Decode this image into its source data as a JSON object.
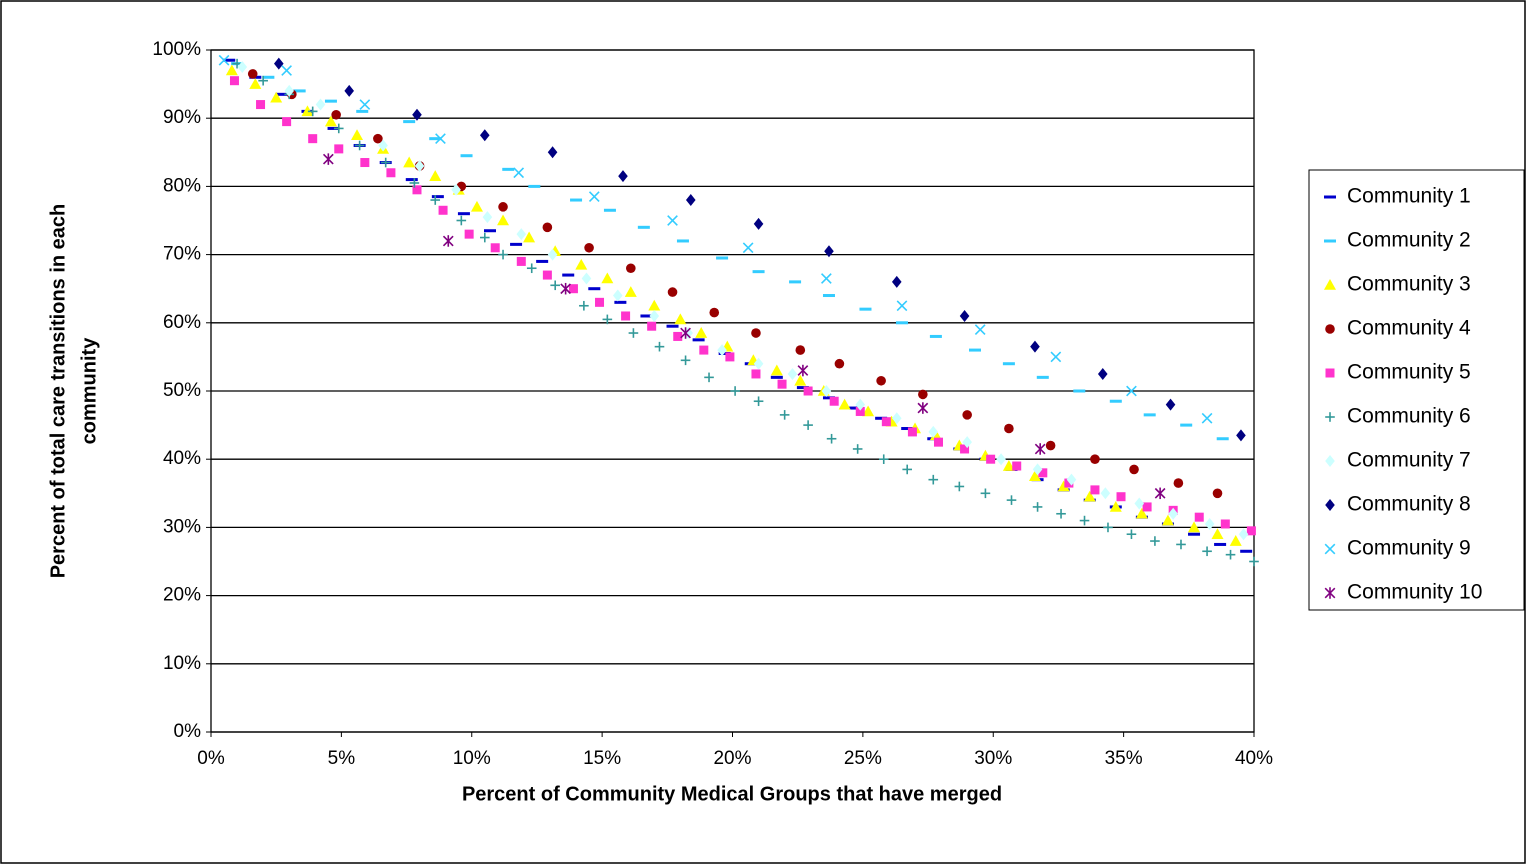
{
  "chart_data": {
    "type": "scatter",
    "xlabel": "Percent of Community Medical Groups that have merged",
    "ylabel": [
      "Percent of total care transitions in each",
      "community"
    ],
    "xlim": [
      0,
      40
    ],
    "xticks": [
      {
        "value": 0,
        "label": "0%"
      },
      {
        "value": 5,
        "label": "5%"
      },
      {
        "value": 10,
        "label": "10%"
      },
      {
        "value": 15,
        "label": "15%"
      },
      {
        "value": 20,
        "label": "20%"
      },
      {
        "value": 25,
        "label": "25%"
      },
      {
        "value": 30,
        "label": "30%"
      },
      {
        "value": 35,
        "label": "35%"
      },
      {
        "value": 40,
        "label": "40%"
      }
    ],
    "ylim": [
      0,
      100
    ],
    "yticks": [
      {
        "value": 0,
        "label": "0%"
      },
      {
        "value": 10,
        "label": "10%"
      },
      {
        "value": 20,
        "label": "20%"
      },
      {
        "value": 30,
        "label": "30%"
      },
      {
        "value": 40,
        "label": "40%"
      },
      {
        "value": 50,
        "label": "50%"
      },
      {
        "value": 60,
        "label": "60%"
      },
      {
        "value": 70,
        "label": "70%"
      },
      {
        "value": 80,
        "label": "80%"
      },
      {
        "value": 90,
        "label": "90%"
      },
      {
        "value": 100,
        "label": "100%"
      }
    ],
    "grid": true,
    "legend": "right",
    "series": [
      {
        "name": "Community 1",
        "color": "#0000cc",
        "marker": "dash",
        "x": [
          0.7,
          1.7,
          2.7,
          3.7,
          4.7,
          5.7,
          6.7,
          7.7,
          8.7,
          9.7,
          10.7,
          11.7,
          12.7,
          13.7,
          14.7,
          15.7,
          16.7,
          17.7,
          18.7,
          19.7,
          20.7,
          21.7,
          22.7,
          23.7,
          24.7,
          25.7,
          26.7,
          27.7,
          28.7,
          29.7,
          30.7,
          31.7,
          32.7,
          33.7,
          34.7,
          35.7,
          36.7,
          37.7,
          38.7,
          39.7
        ],
        "values": [
          98.5,
          96,
          93.5,
          91,
          88.5,
          86,
          83.5,
          81,
          78.5,
          76,
          73.5,
          71.5,
          69,
          67,
          65,
          63,
          61,
          59.5,
          57.5,
          55.5,
          54,
          52,
          50.5,
          49,
          47.5,
          46,
          44.5,
          43,
          41.5,
          40,
          38.5,
          37,
          35.5,
          34,
          33,
          31.5,
          30.5,
          29,
          27.5,
          26.5
        ]
      },
      {
        "name": "Community 2",
        "color": "#33ccff",
        "marker": "dash",
        "x": [
          1,
          2.2,
          3.4,
          4.6,
          5.8,
          7.6,
          8.6,
          9.8,
          11.4,
          12.4,
          14,
          15.3,
          16.6,
          18.1,
          19.6,
          21,
          22.4,
          23.7,
          25.1,
          26.5,
          27.8,
          29.3,
          30.6,
          31.9,
          33.3,
          34.7,
          36,
          37.4,
          38.8
        ],
        "values": [
          98,
          96,
          94,
          92.5,
          91,
          89.5,
          87,
          84.5,
          82.5,
          80,
          78,
          76.5,
          74,
          72,
          69.5,
          67.5,
          66,
          64,
          62,
          60,
          58,
          56,
          54,
          52,
          50,
          48.5,
          46.5,
          45,
          43
        ]
      },
      {
        "name": "Community 3",
        "color": "#ffff00",
        "marker": "triangle",
        "x": [
          0.8,
          1.7,
          2.5,
          3.7,
          4.6,
          5.6,
          6.6,
          7.6,
          8.6,
          9.5,
          10.2,
          11.2,
          12.2,
          13.2,
          14.2,
          15.2,
          16.1,
          17,
          18,
          18.8,
          19.8,
          20.8,
          21.7,
          22.6,
          23.5,
          24.3,
          25.2,
          26.1,
          27,
          27.8,
          28.7,
          29.7,
          30.6,
          31.6,
          32.7,
          33.7,
          34.7,
          35.7,
          36.7,
          37.7,
          38.6,
          39.3
        ],
        "values": [
          97,
          95,
          93,
          91,
          89.5,
          87.5,
          85.5,
          83.5,
          81.5,
          79.5,
          77,
          75,
          72.5,
          70.5,
          68.5,
          66.5,
          64.5,
          62.5,
          60.5,
          58.5,
          56.5,
          54.5,
          53,
          51.5,
          50,
          48,
          47,
          45.5,
          44.5,
          43.5,
          42,
          40.5,
          39,
          37.5,
          36,
          34.5,
          33,
          32,
          31,
          30,
          29,
          28
        ]
      },
      {
        "name": "Community 4",
        "color": "#990000",
        "marker": "circle",
        "x": [
          1.6,
          3.1,
          4.8,
          6.4,
          8,
          9.6,
          11.2,
          12.9,
          14.5,
          16.1,
          17.7,
          19.3,
          20.9,
          22.6,
          24.1,
          25.7,
          27.3,
          29,
          30.6,
          32.2,
          33.9,
          35.4,
          37.1,
          38.6
        ],
        "values": [
          96.5,
          93.5,
          90.5,
          87,
          83,
          80,
          77,
          74,
          71,
          68,
          64.5,
          61.5,
          58.5,
          56,
          54,
          51.5,
          49.5,
          46.5,
          44.5,
          42,
          40,
          38.5,
          36.5,
          35
        ]
      },
      {
        "name": "Community 5",
        "color": "#ff33cc",
        "marker": "square",
        "x": [
          0.9,
          1.9,
          2.9,
          3.9,
          4.9,
          5.9,
          6.9,
          7.9,
          8.9,
          9.9,
          10.9,
          11.9,
          12.9,
          13.9,
          14.9,
          15.9,
          16.9,
          17.9,
          18.9,
          19.9,
          20.9,
          21.9,
          22.9,
          23.9,
          24.9,
          25.9,
          26.9,
          27.9,
          28.9,
          29.9,
          30.9,
          31.9,
          32.9,
          33.9,
          34.9,
          35.9,
          36.9,
          37.9,
          38.9,
          39.9
        ],
        "values": [
          95.5,
          92,
          89.5,
          87,
          85.5,
          83.5,
          82,
          79.5,
          76.5,
          73,
          71,
          69,
          67,
          65,
          63,
          61,
          59.5,
          58,
          56,
          55,
          52.5,
          51,
          50,
          48.5,
          47,
          45.5,
          44,
          42.5,
          41.5,
          40,
          39,
          38,
          36.5,
          35.5,
          34.5,
          33,
          32.5,
          31.5,
          30.5,
          29.5
        ]
      },
      {
        "name": "Community 6",
        "color": "#339999",
        "marker": "plus",
        "x": [
          1,
          2,
          3,
          3.9,
          4.9,
          5.7,
          6.7,
          7.8,
          8.6,
          9.6,
          10.5,
          11.2,
          12.3,
          13.2,
          14.3,
          15.2,
          16.2,
          17.2,
          18.2,
          19.1,
          20.1,
          21,
          22,
          22.9,
          23.8,
          24.8,
          25.8,
          26.7,
          27.7,
          28.7,
          29.7,
          30.7,
          31.7,
          32.6,
          33.5,
          34.4,
          35.3,
          36.2,
          37.2,
          38.2,
          39.1,
          40
        ],
        "values": [
          98,
          95.5,
          93.5,
          91,
          88.5,
          86,
          83.5,
          80.5,
          78,
          75,
          72.5,
          70,
          68,
          65.5,
          62.5,
          60.5,
          58.5,
          56.5,
          54.5,
          52,
          50,
          48.5,
          46.5,
          45,
          43,
          41.5,
          40,
          38.5,
          37,
          36,
          35,
          34,
          33,
          32,
          31,
          30,
          29,
          28,
          27.5,
          26.5,
          26,
          25
        ]
      },
      {
        "name": "Community 7",
        "color": "#ccffff",
        "marker": "diamond",
        "x": [
          1.2,
          3,
          4.2,
          6.6,
          8,
          9.4,
          10.6,
          11.9,
          13.1,
          14.4,
          15.6,
          17,
          18.3,
          19.6,
          21,
          22.3,
          23.6,
          24.9,
          26.3,
          27.7,
          29,
          30.3,
          31.7,
          33,
          34.3,
          35.6,
          36.9,
          38.3,
          39.6
        ],
        "values": [
          97.5,
          94,
          92,
          86,
          83,
          79.5,
          75.5,
          73,
          70,
          66.5,
          64,
          61,
          58.5,
          56,
          54,
          52.5,
          50,
          48,
          46,
          44,
          42.5,
          40,
          38.5,
          37,
          35,
          33.5,
          32,
          30.5,
          29
        ]
      },
      {
        "name": "Community 8",
        "color": "#000080",
        "marker": "diamond",
        "x": [
          2.6,
          5.3,
          7.9,
          10.5,
          13.1,
          15.8,
          18.4,
          21,
          23.7,
          26.3,
          28.9,
          31.6,
          34.2,
          36.8,
          39.5
        ],
        "values": [
          98,
          94,
          90.5,
          87.5,
          85,
          81.5,
          78,
          74.5,
          70.5,
          66,
          61,
          56.5,
          52.5,
          48,
          43.5
        ]
      },
      {
        "name": "Community 9",
        "color": "#33ccff",
        "marker": "x",
        "x": [
          0.5,
          2.9,
          5.9,
          8.8,
          11.8,
          14.7,
          17.7,
          20.6,
          23.6,
          26.5,
          29.5,
          32.4,
          35.3,
          38.2
        ],
        "values": [
          98.5,
          97,
          92,
          87,
          82,
          78.5,
          75,
          71,
          66.5,
          62.5,
          59,
          55,
          50,
          46
        ]
      },
      {
        "name": "Community 10",
        "color": "#800080",
        "marker": "asterisk",
        "x": [
          4.5,
          9.1,
          13.6,
          18.2,
          22.7,
          27.3,
          31.8,
          36.4
        ],
        "values": [
          84,
          72,
          65,
          58.5,
          53,
          47.5,
          41.5,
          35
        ]
      }
    ]
  }
}
